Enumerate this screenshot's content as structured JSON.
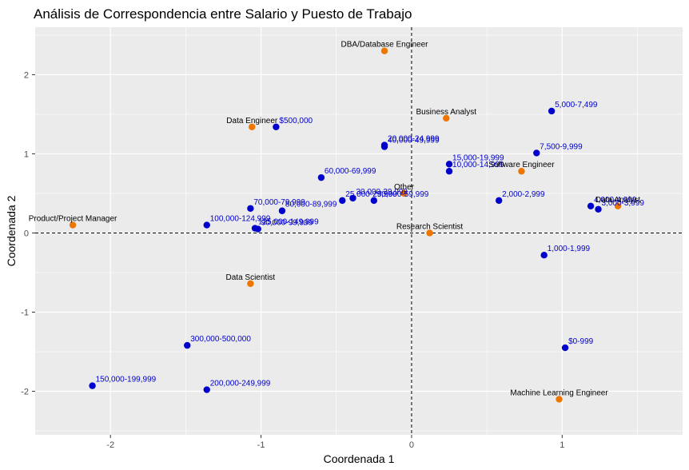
{
  "chart_data": {
    "type": "scatter",
    "title": "Análisis de Correspondencia entre  Salario y Puesto de Trabajo",
    "xlabel": "Coordenada 1",
    "ylabel": "Coordenada 2",
    "xlim": [
      -2.5,
      1.8
    ],
    "ylim": [
      -2.55,
      2.6
    ],
    "x_ticks": [
      -2,
      -1,
      0,
      1
    ],
    "y_ticks": [
      -2,
      -1,
      0,
      1,
      2
    ],
    "grid": true,
    "reference_lines": {
      "x": 0,
      "y": 0,
      "style": "dashed"
    },
    "colors": {
      "Salario": "#0000cd",
      "Puesto": "#ee7600",
      "panel": "#ebebeb",
      "grid": "#ffffff"
    },
    "series": [
      {
        "name": "",
        "role": "Salario",
        "points": [
          {
            "label": "$500,000",
            "x": -0.9,
            "y": 1.34
          },
          {
            "label": "5,000-7,499",
            "x": 0.93,
            "y": 1.54
          },
          {
            "label": "7,500-9,999",
            "x": 0.83,
            "y": 1.01
          },
          {
            "label": "20,000-24,999",
            "x": -0.18,
            "y": 1.11
          },
          {
            "label": "40,000-49,999",
            "x": -0.18,
            "y": 1.09
          },
          {
            "label": "15,000-19,999",
            "x": 0.25,
            "y": 0.87
          },
          {
            "label": "10,000-14,999",
            "x": 0.25,
            "y": 0.78
          },
          {
            "label": "60,000-69,999",
            "x": -0.6,
            "y": 0.7
          },
          {
            "label": "25,000-29,999",
            "x": -0.46,
            "y": 0.41
          },
          {
            "label": "30,000-39,999",
            "x": -0.39,
            "y": 0.44
          },
          {
            "label": "50,000-59,999",
            "x": -0.25,
            "y": 0.41
          },
          {
            "label": "2,000-2,999",
            "x": 0.58,
            "y": 0.41
          },
          {
            "label": "4,000-4,999",
            "x": 1.19,
            "y": 0.34
          },
          {
            "label": "3,000-3,999",
            "x": 1.24,
            "y": 0.3
          },
          {
            "label": "70,000-79,999",
            "x": -1.07,
            "y": 0.31
          },
          {
            "label": "80,000-89,999",
            "x": -0.86,
            "y": 0.28
          },
          {
            "label": "100,000-124,999",
            "x": -1.36,
            "y": 0.1
          },
          {
            "label": "125,000-149,999",
            "x": -1.04,
            "y": 0.06
          },
          {
            "label": "90,000-99,999",
            "x": -1.02,
            "y": 0.05
          },
          {
            "label": "1,000-1,999",
            "x": 0.88,
            "y": -0.28
          },
          {
            "label": "$0-999",
            "x": 1.02,
            "y": -1.45
          },
          {
            "label": "300,000-500,000",
            "x": -1.49,
            "y": -1.42
          },
          {
            "label": "150,000-199,999",
            "x": -2.12,
            "y": -1.93
          },
          {
            "label": "200,000-249,999",
            "x": -1.36,
            "y": -1.98
          }
        ]
      },
      {
        "name": "",
        "role": "Puesto",
        "points": [
          {
            "label": "DBA/Database Engineer",
            "x": -0.18,
            "y": 2.3
          },
          {
            "label": "Business Analyst",
            "x": 0.23,
            "y": 1.45
          },
          {
            "label": "Data Engineer",
            "x": -1.06,
            "y": 1.34
          },
          {
            "label": "Software Engineer",
            "x": 0.73,
            "y": 0.78
          },
          {
            "label": "Other",
            "x": -0.05,
            "y": 0.5
          },
          {
            "label": "Data Analyst",
            "x": 1.37,
            "y": 0.34
          },
          {
            "label": "Product/Project Manager",
            "x": -2.25,
            "y": 0.1
          },
          {
            "label": "Research Scientist",
            "x": 0.12,
            "y": 0.0
          },
          {
            "label": "Data Scientist",
            "x": -1.07,
            "y": -0.64
          },
          {
            "label": "Machine Learning Engineer",
            "x": 0.98,
            "y": -2.1
          }
        ]
      }
    ]
  }
}
